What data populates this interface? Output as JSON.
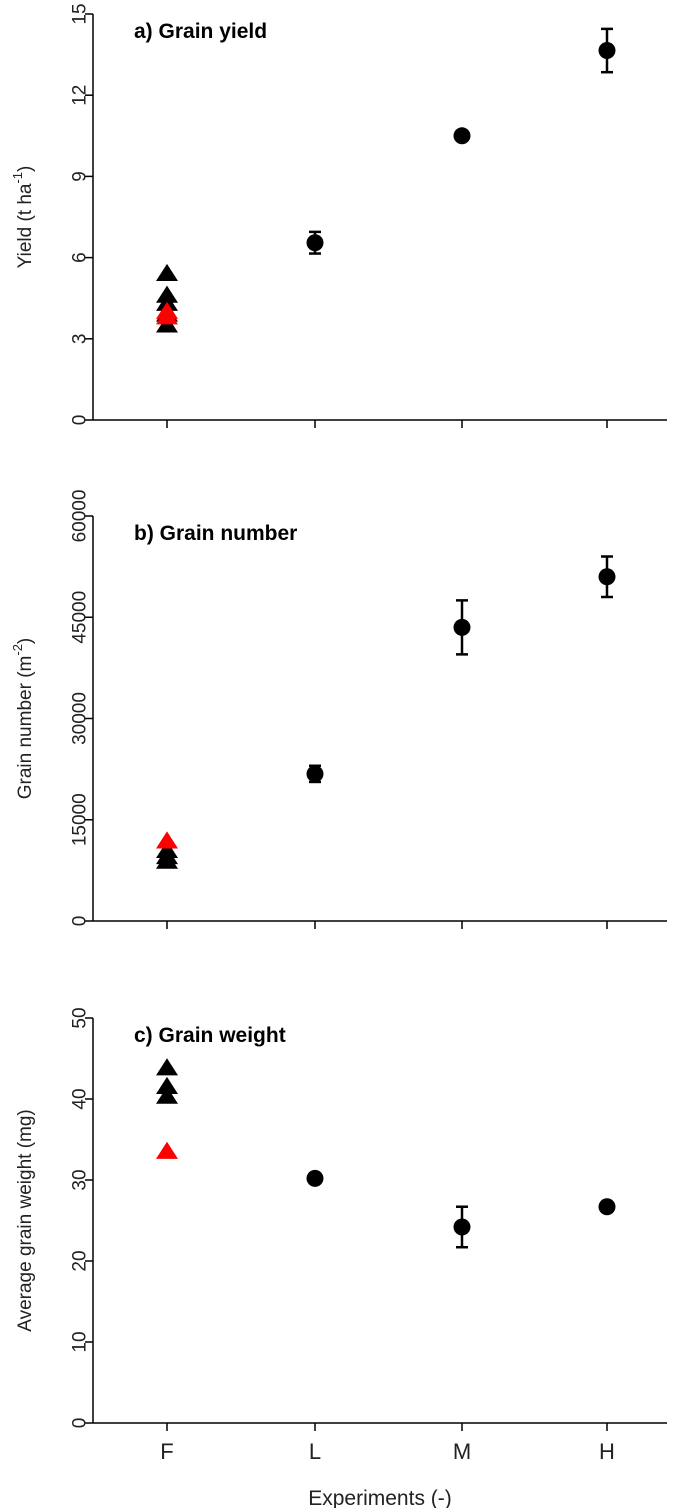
{
  "chart_data": [
    {
      "type": "scatter",
      "title": "a) Grain yield",
      "xlabel": "",
      "ylabel": "Yield (t ha",
      "ylabel_sup": "-1",
      "ylabel_tail": ")",
      "ylim": [
        0,
        15
      ],
      "yticks": [
        0,
        3,
        6,
        9,
        12,
        15
      ],
      "ytick_labels": [
        "0",
        "3",
        "6",
        "9",
        "12",
        "15"
      ],
      "categories": [
        "F",
        "L",
        "M",
        "H"
      ],
      "grid": false,
      "series": [
        {
          "marker": "triangle",
          "color": "#000000",
          "points": [
            {
              "x": "F",
              "y": 3.5
            },
            {
              "x": "F",
              "y": 3.9
            },
            {
              "x": "F",
              "y": 4.3
            },
            {
              "x": "F",
              "y": 4.6
            },
            {
              "x": "F",
              "y": 5.4
            }
          ]
        },
        {
          "marker": "triangle",
          "color": "#ff0000",
          "points": [
            {
              "x": "F",
              "y": 3.8
            },
            {
              "x": "F",
              "y": 4.0
            }
          ]
        },
        {
          "marker": "circle",
          "color": "#000000",
          "points": [
            {
              "x": "L",
              "y": 6.55,
              "err": 0.4
            },
            {
              "x": "M",
              "y": 10.5,
              "err": 0.1
            },
            {
              "x": "H",
              "y": 13.65,
              "err": 0.8
            }
          ]
        }
      ]
    },
    {
      "type": "scatter",
      "title": "b) Grain number",
      "xlabel": "",
      "ylabel": "Grain number (m",
      "ylabel_sup": "-2",
      "ylabel_tail": ")",
      "ylim": [
        0,
        60000
      ],
      "yticks": [
        0,
        15000,
        30000,
        45000,
        60000
      ],
      "ytick_labels": [
        "0",
        "15000",
        "30000",
        "45000",
        "60000"
      ],
      "categories": [
        "F",
        "L",
        "M",
        "H"
      ],
      "grid": false,
      "series": [
        {
          "marker": "triangle",
          "color": "#000000",
          "points": [
            {
              "x": "F",
              "y": 8800
            },
            {
              "x": "F",
              "y": 9500
            },
            {
              "x": "F",
              "y": 10400
            }
          ]
        },
        {
          "marker": "triangle",
          "color": "#ff0000",
          "points": [
            {
              "x": "F",
              "y": 11800
            }
          ]
        },
        {
          "marker": "circle",
          "color": "#000000",
          "points": [
            {
              "x": "L",
              "y": 21800,
              "err": 1200
            },
            {
              "x": "M",
              "y": 43500,
              "err": 4000
            },
            {
              "x": "H",
              "y": 51000,
              "err": 3000
            }
          ]
        }
      ]
    },
    {
      "type": "scatter",
      "title": "c) Grain weight",
      "xlabel": "Experiments (-)",
      "ylabel": "Average grain weight (mg)",
      "ylabel_sup": "",
      "ylabel_tail": "",
      "ylim": [
        0,
        50
      ],
      "yticks": [
        0,
        10,
        20,
        30,
        40,
        50
      ],
      "ytick_labels": [
        "0",
        "10",
        "20",
        "30",
        "40",
        "50"
      ],
      "categories": [
        "F",
        "L",
        "M",
        "H"
      ],
      "grid": false,
      "series": [
        {
          "marker": "triangle",
          "color": "#000000",
          "points": [
            {
              "x": "F",
              "y": 40.3
            },
            {
              "x": "F",
              "y": 41.5
            },
            {
              "x": "F",
              "y": 43.8
            }
          ]
        },
        {
          "marker": "triangle",
          "color": "#ff0000",
          "points": [
            {
              "x": "F",
              "y": 33.5
            }
          ]
        },
        {
          "marker": "circle",
          "color": "#000000",
          "points": [
            {
              "x": "L",
              "y": 30.2,
              "err": 0.4
            },
            {
              "x": "M",
              "y": 24.2,
              "err": 2.5
            },
            {
              "x": "H",
              "y": 26.7,
              "err": 0.6
            }
          ]
        }
      ]
    }
  ]
}
